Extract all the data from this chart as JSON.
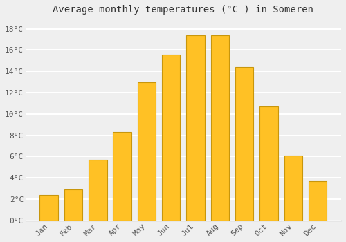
{
  "title": "Average monthly temperatures (°C ) in Someren",
  "months": [
    "Jan",
    "Feb",
    "Mar",
    "Apr",
    "May",
    "Jun",
    "Jul",
    "Aug",
    "Sep",
    "Oct",
    "Nov",
    "Dec"
  ],
  "values": [
    2.4,
    2.9,
    5.7,
    8.3,
    13.0,
    15.6,
    17.4,
    17.4,
    14.4,
    10.7,
    6.1,
    3.7
  ],
  "bar_color": "#FFC125",
  "bar_edge_color": "#C8960C",
  "background_color": "#EFEFEF",
  "grid_color": "#FFFFFF",
  "ylim": [
    0,
    19
  ],
  "ytick_values": [
    0,
    2,
    4,
    6,
    8,
    10,
    12,
    14,
    16,
    18
  ],
  "title_fontsize": 10,
  "tick_fontsize": 8,
  "font_family": "monospace"
}
